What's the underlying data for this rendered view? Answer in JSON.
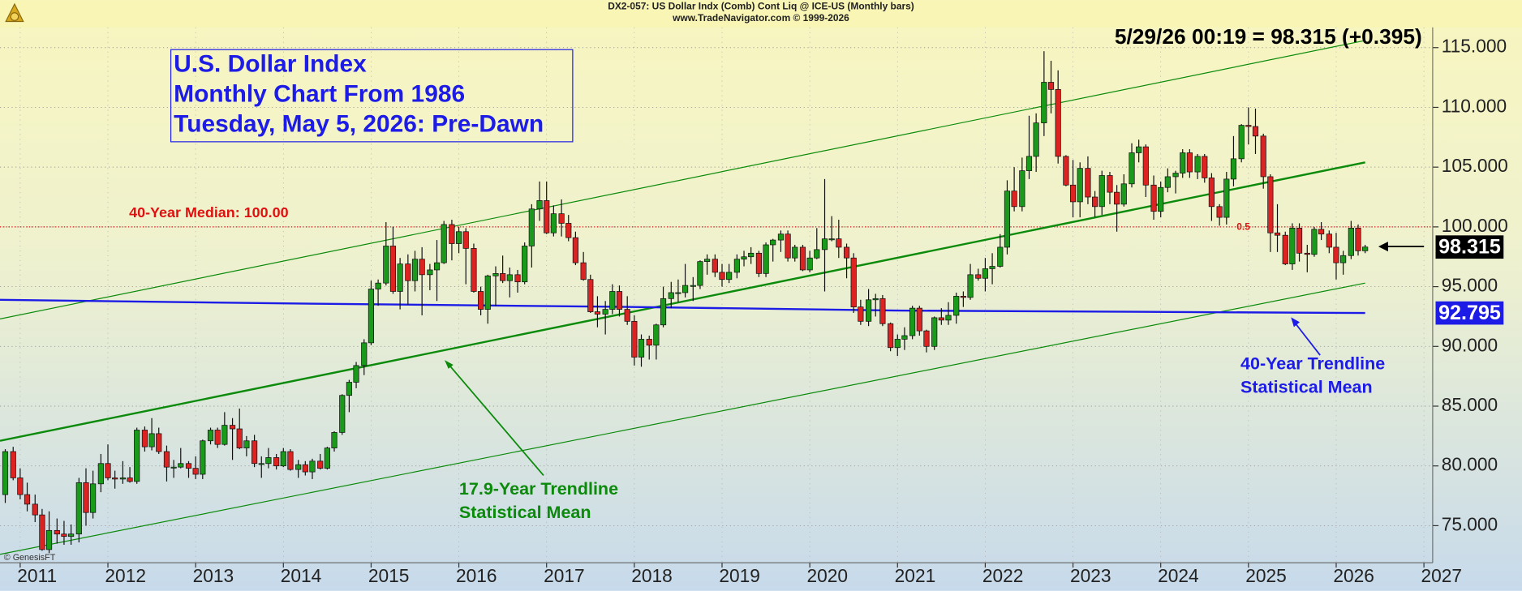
{
  "chart_data": {
    "type": "candlestick",
    "header_title": "DX2-057:  US Dollar Indx (Comb) Cont Liq @ ICE-US  (Monthly bars)",
    "header_subtitle": "www.TradeNavigator.com © 1999-2026",
    "quote": "5/29/26 00:19 = 98.315 (+0.395)",
    "title_lines": [
      "U.S. Dollar Index",
      "Monthly Chart From 1986",
      "Tuesday, May 5, 2026: Pre-Dawn"
    ],
    "median": {
      "value": 100,
      "label": "40-Year Median: 100.00",
      "color": "#e01010"
    },
    "fib_label": "0.5",
    "copyright": "© GenesisFT",
    "annotations": [
      {
        "lines": [
          "17.9-Year Trendline",
          "Statistical Mean"
        ],
        "color": "#0b8a0b"
      },
      {
        "lines": [
          "40-Year Trendline",
          "Statistical Mean"
        ],
        "color": "#1c1ce6"
      }
    ],
    "price_tags": [
      {
        "value": 98.315,
        "label": "98.315",
        "color": "#000000"
      },
      {
        "value": 92.795,
        "label": "92.795",
        "color": "#1c1ce6"
      }
    ],
    "overlays": [
      {
        "color": "#0b8a0b",
        "width": 2,
        "x": [
          2010.77,
          2026.33
        ],
        "values": [
          82.1,
          105.4
        ]
      },
      {
        "color": "#0b8a0b",
        "width": 1,
        "x": [
          2010.77,
          2026.33
        ],
        "values": [
          92.3,
          115.6
        ]
      },
      {
        "color": "#0b8a0b",
        "width": 1,
        "x": [
          2010.77,
          2026.33
        ],
        "values": [
          72.6,
          95.3
        ]
      },
      {
        "color": "#1c1ce6",
        "width": 2,
        "x": [
          2010.77,
          2014,
          2018,
          2021,
          2026.33
        ],
        "values": [
          93.9,
          93.6,
          93.3,
          93.0,
          92.795
        ]
      }
    ],
    "up_color": "#1a9a1a",
    "down_color": "#dd2222",
    "xlim": [
      2010.77,
      2027.1
    ],
    "xticks": [
      2011,
      2012,
      2013,
      2014,
      2015,
      2016,
      2017,
      2018,
      2019,
      2020,
      2021,
      2022,
      2023,
      2024,
      2025,
      2026,
      2027
    ],
    "ylim": [
      71.9,
      116.7
    ],
    "yticks": [
      {
        "value": 75,
        "label": "75.000"
      },
      {
        "value": 80,
        "label": "80.000"
      },
      {
        "value": 85,
        "label": "85.000"
      },
      {
        "value": 90,
        "label": "90.000"
      },
      {
        "value": 95,
        "label": "95.000"
      },
      {
        "value": 100,
        "label": "100.000"
      },
      {
        "value": 105,
        "label": "105.000"
      },
      {
        "value": 110,
        "label": "110.000"
      },
      {
        "value": 115,
        "label": "115.000"
      }
    ],
    "grid": true,
    "x": [
      2010.83,
      2010.92,
      2011.0,
      2011.08,
      2011.17,
      2011.25,
      2011.33,
      2011.42,
      2011.5,
      2011.58,
      2011.67,
      2011.75,
      2011.83,
      2011.92,
      2012.0,
      2012.08,
      2012.17,
      2012.25,
      2012.33,
      2012.42,
      2012.5,
      2012.58,
      2012.67,
      2012.75,
      2012.83,
      2012.92,
      2013.0,
      2013.08,
      2013.17,
      2013.25,
      2013.33,
      2013.42,
      2013.5,
      2013.58,
      2013.67,
      2013.75,
      2013.83,
      2013.92,
      2014.0,
      2014.08,
      2014.17,
      2014.25,
      2014.33,
      2014.42,
      2014.5,
      2014.58,
      2014.67,
      2014.75,
      2014.83,
      2014.92,
      2015.0,
      2015.08,
      2015.17,
      2015.25,
      2015.33,
      2015.42,
      2015.5,
      2015.58,
      2015.67,
      2015.75,
      2015.83,
      2015.92,
      2016.0,
      2016.08,
      2016.17,
      2016.25,
      2016.33,
      2016.42,
      2016.5,
      2016.58,
      2016.67,
      2016.75,
      2016.83,
      2016.92,
      2017.0,
      2017.08,
      2017.17,
      2017.25,
      2017.33,
      2017.42,
      2017.5,
      2017.58,
      2017.67,
      2017.75,
      2017.83,
      2017.92,
      2018.0,
      2018.08,
      2018.17,
      2018.25,
      2018.33,
      2018.42,
      2018.5,
      2018.58,
      2018.67,
      2018.75,
      2018.83,
      2018.92,
      2019.0,
      2019.08,
      2019.17,
      2019.25,
      2019.33,
      2019.42,
      2019.5,
      2019.58,
      2019.67,
      2019.75,
      2019.83,
      2019.92,
      2020.0,
      2020.08,
      2020.17,
      2020.25,
      2020.33,
      2020.42,
      2020.5,
      2020.58,
      2020.67,
      2020.75,
      2020.83,
      2020.92,
      2021.0,
      2021.08,
      2021.17,
      2021.25,
      2021.33,
      2021.42,
      2021.5,
      2021.58,
      2021.67,
      2021.75,
      2021.83,
      2021.92,
      2022.0,
      2022.08,
      2022.17,
      2022.25,
      2022.33,
      2022.42,
      2022.5,
      2022.58,
      2022.67,
      2022.75,
      2022.83,
      2022.92,
      2023.0,
      2023.08,
      2023.17,
      2023.25,
      2023.33,
      2023.42,
      2023.5,
      2023.58,
      2023.67,
      2023.75,
      2023.83,
      2023.92,
      2024.0,
      2024.08,
      2024.17,
      2024.25,
      2024.33,
      2024.42,
      2024.5,
      2024.58,
      2024.67,
      2024.75,
      2024.83,
      2024.92,
      2025.0,
      2025.08,
      2025.17,
      2025.25,
      2025.33,
      2025.42,
      2025.5,
      2025.58,
      2025.67,
      2025.75,
      2025.83,
      2025.92,
      2026.0,
      2026.08,
      2026.17,
      2026.25,
      2026.33
    ],
    "ohlc": [
      [
        77.6,
        81.4,
        76.9,
        81.2
      ],
      [
        81.2,
        81.6,
        78.8,
        79.0
      ],
      [
        79.0,
        79.8,
        77.2,
        77.6
      ],
      [
        77.6,
        78.6,
        76.2,
        76.8
      ],
      [
        76.8,
        77.6,
        75.3,
        75.9
      ],
      [
        75.9,
        76.4,
        72.9,
        73.0
      ],
      [
        73.0,
        76.2,
        72.7,
        74.6
      ],
      [
        74.6,
        75.6,
        73.5,
        74.3
      ],
      [
        74.3,
        75.4,
        73.4,
        74.1
      ],
      [
        74.1,
        75.1,
        73.4,
        74.3
      ],
      [
        74.3,
        79.0,
        73.6,
        78.6
      ],
      [
        78.6,
        79.8,
        75.0,
        76.1
      ],
      [
        76.1,
        79.6,
        75.6,
        78.5
      ],
      [
        78.5,
        81.0,
        77.8,
        80.2
      ],
      [
        80.2,
        81.8,
        78.8,
        79.0
      ],
      [
        79.0,
        79.6,
        78.1,
        78.9
      ],
      [
        78.9,
        80.4,
        78.5,
        79.0
      ],
      [
        79.0,
        79.9,
        78.6,
        78.7
      ],
      [
        78.7,
        83.2,
        78.5,
        83.0
      ],
      [
        83.0,
        83.3,
        81.2,
        81.6
      ],
      [
        81.6,
        84.0,
        81.3,
        82.7
      ],
      [
        82.7,
        83.2,
        81.0,
        81.2
      ],
      [
        81.2,
        81.7,
        78.7,
        79.9
      ],
      [
        79.9,
        80.5,
        79.0,
        79.9
      ],
      [
        79.9,
        81.5,
        79.8,
        80.2
      ],
      [
        80.2,
        80.4,
        79.0,
        79.8
      ],
      [
        79.8,
        80.8,
        78.9,
        79.3
      ],
      [
        79.3,
        82.2,
        78.9,
        82.1
      ],
      [
        82.1,
        83.2,
        81.8,
        83.0
      ],
      [
        83.0,
        83.2,
        81.5,
        81.8
      ],
      [
        81.8,
        84.5,
        81.7,
        83.4
      ],
      [
        83.4,
        84.0,
        80.5,
        83.1
      ],
      [
        83.1,
        84.8,
        81.4,
        81.5
      ],
      [
        81.5,
        82.5,
        80.8,
        82.1
      ],
      [
        82.1,
        82.6,
        79.9,
        80.2
      ],
      [
        80.2,
        80.8,
        79.0,
        80.2
      ],
      [
        80.2,
        81.5,
        79.8,
        80.7
      ],
      [
        80.7,
        81.0,
        79.7,
        80.0
      ],
      [
        80.0,
        81.5,
        79.9,
        81.2
      ],
      [
        81.2,
        81.4,
        79.6,
        79.7
      ],
      [
        79.7,
        80.5,
        79.0,
        80.1
      ],
      [
        80.1,
        80.4,
        79.2,
        79.5
      ],
      [
        79.5,
        80.6,
        78.9,
        80.4
      ],
      [
        80.4,
        81.0,
        79.7,
        79.8
      ],
      [
        79.8,
        81.6,
        79.7,
        81.5
      ],
      [
        81.5,
        82.9,
        81.2,
        82.8
      ],
      [
        82.8,
        86.0,
        82.6,
        85.9
      ],
      [
        85.9,
        87.2,
        84.5,
        87.0
      ],
      [
        87.0,
        88.7,
        86.5,
        88.4
      ],
      [
        88.4,
        90.6,
        87.6,
        90.3
      ],
      [
        90.3,
        95.5,
        90.1,
        94.8
      ],
      [
        94.8,
        95.6,
        93.4,
        95.3
      ],
      [
        95.3,
        100.4,
        95.1,
        98.4
      ],
      [
        98.4,
        100.0,
        94.4,
        94.6
      ],
      [
        94.6,
        97.4,
        93.1,
        96.9
      ],
      [
        96.9,
        97.7,
        93.5,
        95.5
      ],
      [
        95.5,
        98.0,
        94.6,
        97.3
      ],
      [
        97.3,
        98.3,
        92.6,
        96.0
      ],
      [
        96.0,
        96.9,
        94.7,
        96.4
      ],
      [
        96.4,
        98.9,
        93.8,
        97.0
      ],
      [
        97.0,
        100.5,
        96.9,
        100.2
      ],
      [
        100.2,
        100.6,
        97.2,
        98.6
      ],
      [
        98.6,
        100.0,
        97.8,
        99.6
      ],
      [
        99.6,
        99.9,
        95.2,
        98.2
      ],
      [
        98.2,
        98.6,
        94.5,
        94.6
      ],
      [
        94.6,
        95.0,
        92.6,
        93.1
      ],
      [
        93.1,
        96.0,
        91.9,
        95.9
      ],
      [
        95.9,
        96.7,
        93.4,
        96.1
      ],
      [
        96.1,
        97.6,
        95.3,
        95.5
      ],
      [
        95.5,
        96.6,
        94.1,
        96.0
      ],
      [
        96.0,
        96.4,
        94.5,
        95.4
      ],
      [
        95.4,
        98.7,
        95.2,
        98.4
      ],
      [
        98.4,
        101.9,
        96.6,
        101.5
      ],
      [
        101.5,
        103.8,
        100.5,
        102.2
      ],
      [
        102.2,
        103.8,
        99.4,
        99.5
      ],
      [
        99.5,
        101.8,
        99.2,
        101.1
      ],
      [
        101.1,
        102.3,
        99.2,
        100.3
      ],
      [
        100.3,
        101.0,
        98.8,
        99.1
      ],
      [
        99.1,
        99.6,
        96.8,
        97.0
      ],
      [
        97.0,
        97.9,
        95.5,
        95.6
      ],
      [
        95.6,
        96.0,
        92.8,
        92.9
      ],
      [
        92.9,
        94.2,
        91.6,
        92.7
      ],
      [
        92.7,
        93.8,
        91.0,
        93.1
      ],
      [
        93.1,
        95.2,
        92.7,
        94.6
      ],
      [
        94.6,
        95.1,
        92.5,
        93.1
      ],
      [
        93.1,
        94.2,
        91.8,
        92.1
      ],
      [
        92.1,
        92.6,
        88.4,
        89.1
      ],
      [
        89.1,
        91.0,
        88.3,
        90.6
      ],
      [
        90.6,
        90.9,
        88.9,
        90.1
      ],
      [
        90.1,
        91.9,
        88.9,
        91.8
      ],
      [
        91.8,
        95.0,
        91.6,
        94.0
      ],
      [
        94.0,
        95.4,
        93.2,
        94.5
      ],
      [
        94.5,
        95.6,
        93.7,
        94.5
      ],
      [
        94.5,
        96.9,
        94.1,
        95.1
      ],
      [
        95.1,
        95.8,
        93.8,
        95.1
      ],
      [
        95.1,
        97.2,
        94.8,
        97.1
      ],
      [
        97.1,
        97.7,
        96.0,
        97.3
      ],
      [
        97.3,
        97.7,
        95.8,
        96.2
      ],
      [
        96.2,
        96.9,
        95.0,
        95.6
      ],
      [
        95.6,
        96.9,
        95.3,
        96.2
      ],
      [
        96.2,
        97.7,
        95.7,
        97.3
      ],
      [
        97.3,
        98.0,
        96.7,
        97.5
      ],
      [
        97.5,
        98.3,
        96.9,
        97.8
      ],
      [
        97.8,
        98.0,
        95.8,
        96.1
      ],
      [
        96.1,
        98.7,
        95.8,
        98.5
      ],
      [
        98.5,
        99.0,
        97.1,
        98.9
      ],
      [
        98.9,
        99.7,
        97.9,
        99.4
      ],
      [
        99.4,
        99.7,
        97.1,
        97.4
      ],
      [
        97.4,
        98.5,
        97.1,
        98.3
      ],
      [
        98.3,
        98.5,
        96.3,
        96.4
      ],
      [
        96.4,
        98.0,
        96.2,
        97.4
      ],
      [
        97.4,
        99.9,
        97.3,
        98.1
      ],
      [
        98.1,
        104.0,
        94.6,
        99.0
      ],
      [
        99.0,
        100.9,
        98.8,
        99.0
      ],
      [
        99.0,
        100.6,
        97.4,
        98.3
      ],
      [
        98.3,
        98.6,
        95.7,
        97.4
      ],
      [
        97.4,
        97.8,
        92.8,
        93.3
      ],
      [
        93.3,
        93.9,
        91.8,
        92.1
      ],
      [
        92.1,
        94.8,
        91.7,
        93.9
      ],
      [
        93.9,
        94.4,
        92.5,
        94.0
      ],
      [
        94.0,
        94.3,
        91.7,
        91.9
      ],
      [
        91.9,
        92.0,
        89.6,
        89.9
      ],
      [
        89.9,
        91.0,
        89.2,
        90.6
      ],
      [
        90.6,
        91.6,
        89.7,
        90.9
      ],
      [
        90.9,
        93.4,
        90.6,
        93.2
      ],
      [
        93.2,
        93.4,
        90.9,
        91.3
      ],
      [
        91.3,
        91.4,
        89.5,
        90.0
      ],
      [
        90.0,
        92.5,
        89.7,
        92.4
      ],
      [
        92.4,
        93.2,
        91.8,
        92.2
      ],
      [
        92.2,
        93.7,
        91.8,
        92.6
      ],
      [
        92.6,
        94.5,
        91.9,
        94.2
      ],
      [
        94.2,
        94.6,
        93.3,
        94.1
      ],
      [
        94.1,
        96.9,
        93.9,
        96.0
      ],
      [
        96.0,
        96.5,
        95.5,
        95.7
      ],
      [
        95.7,
        97.4,
        94.6,
        96.5
      ],
      [
        96.5,
        97.8,
        95.2,
        96.7
      ],
      [
        96.7,
        99.4,
        96.6,
        98.3
      ],
      [
        98.3,
        103.9,
        97.7,
        103.0
      ],
      [
        103.0,
        105.0,
        101.3,
        101.7
      ],
      [
        101.7,
        105.8,
        101.3,
        104.7
      ],
      [
        104.7,
        109.3,
        104.0,
        105.9
      ],
      [
        105.9,
        109.5,
        104.6,
        108.7
      ],
      [
        108.7,
        114.7,
        107.6,
        112.1
      ],
      [
        112.1,
        113.9,
        109.5,
        111.5
      ],
      [
        111.5,
        113.1,
        105.3,
        105.9
      ],
      [
        105.9,
        106.0,
        103.4,
        103.5
      ],
      [
        103.5,
        105.6,
        100.8,
        102.1
      ],
      [
        102.1,
        105.4,
        100.8,
        104.9
      ],
      [
        104.9,
        105.9,
        101.9,
        102.5
      ],
      [
        102.5,
        103.0,
        100.8,
        101.7
      ],
      [
        101.7,
        104.7,
        101.0,
        104.3
      ],
      [
        104.3,
        104.6,
        101.9,
        102.9
      ],
      [
        102.9,
        103.5,
        99.6,
        101.9
      ],
      [
        101.9,
        104.4,
        101.7,
        103.6
      ],
      [
        103.6,
        107.0,
        103.3,
        106.2
      ],
      [
        106.2,
        107.3,
        105.4,
        106.7
      ],
      [
        106.7,
        106.9,
        102.5,
        103.5
      ],
      [
        103.5,
        104.3,
        100.6,
        101.3
      ],
      [
        101.3,
        103.8,
        100.8,
        103.3
      ],
      [
        103.3,
        104.9,
        102.9,
        104.2
      ],
      [
        104.2,
        104.7,
        102.8,
        104.5
      ],
      [
        104.5,
        106.5,
        104.1,
        106.2
      ],
      [
        106.2,
        106.5,
        104.1,
        104.6
      ],
      [
        104.6,
        106.1,
        104.0,
        105.9
      ],
      [
        105.9,
        106.1,
        103.7,
        104.1
      ],
      [
        104.1,
        104.5,
        100.5,
        101.7
      ],
      [
        101.7,
        101.9,
        100.1,
        100.8
      ],
      [
        100.8,
        104.6,
        100.2,
        104.0
      ],
      [
        104.0,
        107.6,
        103.4,
        105.7
      ],
      [
        105.7,
        108.6,
        105.4,
        108.5
      ],
      [
        108.5,
        110.0,
        106.9,
        108.4
      ],
      [
        108.4,
        109.9,
        106.1,
        107.6
      ],
      [
        107.6,
        107.8,
        103.2,
        104.2
      ],
      [
        104.2,
        104.4,
        97.9,
        99.5
      ],
      [
        99.5,
        101.9,
        97.9,
        99.3
      ],
      [
        99.3,
        99.6,
        96.8,
        96.9
      ],
      [
        96.9,
        100.3,
        96.4,
        99.9
      ],
      [
        99.9,
        100.3,
        97.1,
        97.8
      ],
      [
        97.8,
        98.5,
        96.2,
        97.7
      ],
      [
        97.7,
        100.0,
        97.5,
        99.8
      ],
      [
        99.8,
        100.4,
        98.9,
        99.4
      ],
      [
        99.4,
        99.7,
        97.8,
        98.3
      ],
      [
        98.3,
        99.5,
        95.6,
        97.0
      ],
      [
        97.0,
        98.0,
        96.0,
        97.6
      ],
      [
        97.6,
        100.5,
        97.3,
        99.9
      ],
      [
        99.9,
        100.2,
        97.6,
        98.0
      ],
      [
        98.0,
        98.5,
        97.8,
        98.315
      ]
    ]
  }
}
